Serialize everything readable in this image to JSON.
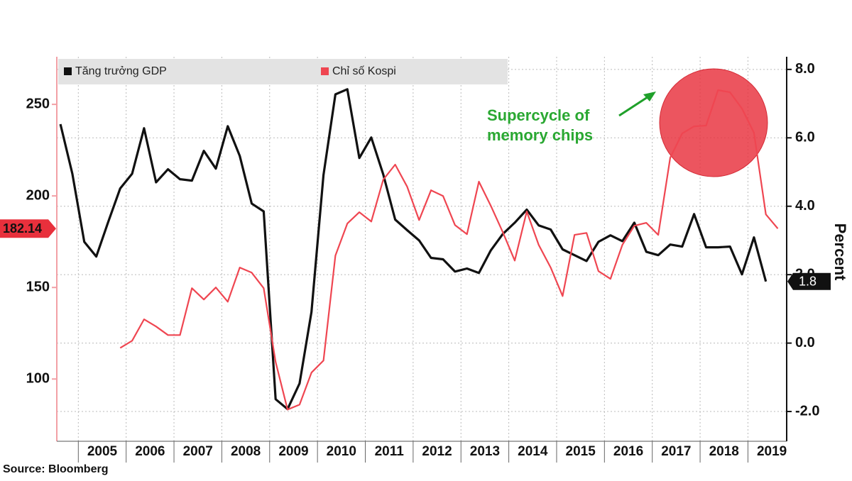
{
  "chart_data": {
    "type": "line",
    "y_label": "Percent",
    "source": "Source: Bloomberg",
    "annotation": [
      "Supercycle of",
      "memory chips"
    ],
    "legend": "top-left",
    "grid": true,
    "xlim": [
      2004.55,
      2019.81
    ],
    "xticks": [
      {
        "value": 2005.5,
        "label": "2005"
      },
      {
        "value": 2006.5,
        "label": "2006"
      },
      {
        "value": 2007.5,
        "label": "2007"
      },
      {
        "value": 2008.5,
        "label": "2008"
      },
      {
        "value": 2009.5,
        "label": "2009"
      },
      {
        "value": 2010.5,
        "label": "2010"
      },
      {
        "value": 2011.5,
        "label": "2011"
      },
      {
        "value": 2012.5,
        "label": "2012"
      },
      {
        "value": 2013.5,
        "label": "2013"
      },
      {
        "value": 2014.5,
        "label": "2014"
      },
      {
        "value": 2015.5,
        "label": "2015"
      },
      {
        "value": 2016.5,
        "label": "2016"
      },
      {
        "value": 2017.5,
        "label": "2017"
      },
      {
        "value": 2018.5,
        "label": "2018"
      },
      {
        "value": 2019.5,
        "label": "2019"
      }
    ],
    "ylim": [
      66,
      276
    ],
    "yticks": [
      100,
      150,
      200,
      250
    ],
    "y2lim": [
      -2.87,
      8.37
    ],
    "y2ticks": [
      {
        "value": -2,
        "label": "-2.0"
      },
      {
        "value": 0,
        "label": "0.0"
      },
      {
        "value": 2,
        "label": "2.0"
      },
      {
        "value": 4,
        "label": "4.0"
      },
      {
        "value": 6,
        "label": "6.0"
      },
      {
        "value": 8,
        "label": "8.0"
      }
    ],
    "x": [
      2004.625,
      2004.875,
      2005.125,
      2005.375,
      2005.625,
      2005.875,
      2006.125,
      2006.375,
      2006.625,
      2006.875,
      2007.125,
      2007.375,
      2007.625,
      2007.875,
      2008.125,
      2008.375,
      2008.625,
      2008.875,
      2009.125,
      2009.375,
      2009.625,
      2009.875,
      2010.125,
      2010.375,
      2010.625,
      2010.875,
      2011.125,
      2011.375,
      2011.625,
      2011.875,
      2012.125,
      2012.375,
      2012.625,
      2012.875,
      2013.125,
      2013.375,
      2013.625,
      2013.875,
      2014.125,
      2014.375,
      2014.625,
      2014.875,
      2015.125,
      2015.375,
      2015.625,
      2015.875,
      2016.125,
      2016.375,
      2016.625,
      2016.875,
      2017.125,
      2017.375,
      2017.625,
      2017.875,
      2018.125,
      2018.375,
      2018.625,
      2018.875,
      2019.125,
      2019.375,
      2019.625
    ],
    "series": [
      {
        "name": "Tăng trưởng GDP",
        "color": "#111111",
        "axis": "y2",
        "values": [
          6.4,
          4.95,
          2.96,
          2.53,
          3.54,
          4.52,
          4.95,
          6.28,
          4.7,
          5.08,
          4.79,
          4.75,
          5.62,
          5.1,
          6.34,
          5.47,
          4.08,
          3.85,
          -1.64,
          -1.93,
          -1.18,
          0.91,
          4.91,
          7.27,
          7.42,
          5.41,
          6.01,
          4.93,
          3.61,
          3.3,
          3.0,
          2.49,
          2.45,
          2.09,
          2.18,
          2.05,
          2.71,
          3.19,
          3.52,
          3.9,
          3.44,
          3.32,
          2.74,
          2.57,
          2.4,
          2.96,
          3.15,
          2.98,
          3.52,
          2.67,
          2.57,
          2.88,
          2.82,
          3.77,
          2.8,
          2.8,
          2.82,
          2.01,
          3.09,
          1.8,
          null
        ]
      },
      {
        "name": "Chỉ số Kospi",
        "color": "#ef4651",
        "values": [
          null,
          null,
          null,
          null,
          null,
          117.0,
          120.9,
          132.6,
          128.7,
          124.0,
          124.0,
          149.6,
          143.4,
          150.0,
          142.2,
          160.9,
          158.1,
          149.6,
          109.3,
          83.3,
          86.0,
          103.5,
          110.1,
          167.4,
          184.9,
          191.1,
          186.0,
          208.9,
          217.1,
          205.0,
          186.8,
          203.1,
          200.0,
          184.1,
          179.1,
          207.8,
          194.6,
          180.2,
          164.7,
          191.5,
          173.3,
          160.9,
          145.3,
          178.7,
          179.8,
          158.9,
          154.7,
          173.3,
          183.7,
          185.3,
          178.7,
          220.9,
          234.1,
          238.0,
          238.4,
          257.8,
          256.6,
          247.7,
          234.5,
          189.9,
          182.14
        ]
      }
    ]
  }
}
